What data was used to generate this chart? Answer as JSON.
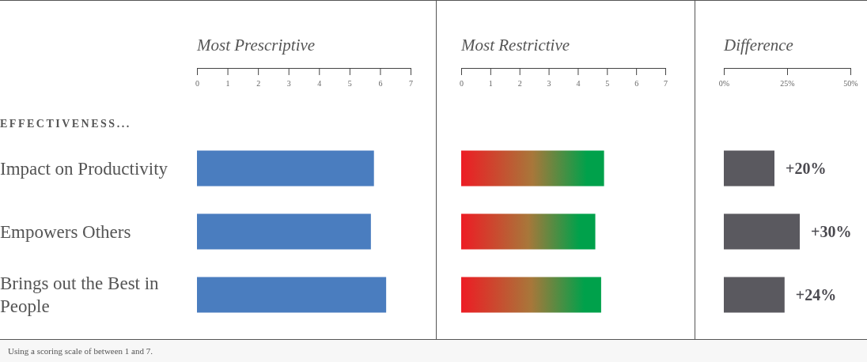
{
  "chart_data": [
    {
      "type": "bar",
      "orientation": "horizontal",
      "title": "Most Prescriptive",
      "subtitle": "EFFECTIVENESS...",
      "categories": [
        "Impact on Productivity",
        "Empowers Others",
        "Brings out the Best in People"
      ],
      "series": [
        {
          "color": "#4a7dbf",
          "values": [
            5.8,
            5.7,
            6.2
          ]
        }
      ],
      "xlim": [
        0,
        7
      ],
      "xticks": [
        0,
        1,
        2,
        3,
        4,
        5,
        6,
        7
      ],
      "grid": false,
      "annotations": [
        "Using a scoring scale of between 1 and 7."
      ]
    },
    {
      "type": "bar",
      "orientation": "horizontal",
      "title": "Most Restrictive",
      "categories": [
        null,
        null,
        null
      ],
      "series": [
        {
          "color": "#00a14b",
          "values": [
            4.9,
            4.6,
            4.8
          ]
        }
      ],
      "xlim": [
        0,
        7
      ],
      "xticks": [
        0,
        1,
        2,
        3,
        4,
        5,
        6,
        7
      ],
      "tick_labels": "x",
      "grid": false
    },
    {
      "type": "bar",
      "orientation": "horizontal",
      "title": "Difference",
      "categories": [
        null,
        null,
        null
      ],
      "series": [
        {
          "color": "#5a595f",
          "values": [
            20,
            30,
            24
          ],
          "value_labels": [
            "+20%",
            "+30%",
            "+24%"
          ]
        }
      ],
      "xlim": [
        0,
        50
      ],
      "xticks": [
        {
          "value": 0,
          "label": "0%"
        },
        {
          "value": 25,
          "label": "25%"
        },
        {
          "value": 50,
          "label": "50%"
        }
      ],
      "tick_labels": "x",
      "grid": false
    }
  ]
}
